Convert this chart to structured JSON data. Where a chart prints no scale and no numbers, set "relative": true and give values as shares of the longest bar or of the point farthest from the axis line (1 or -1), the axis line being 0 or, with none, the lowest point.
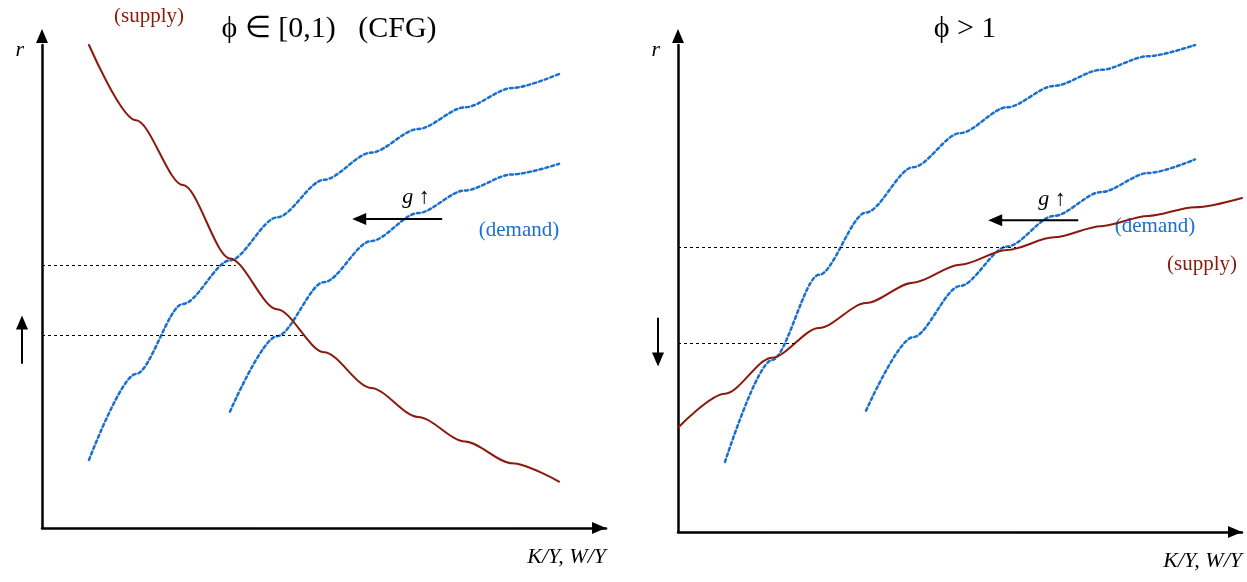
{
  "chart_data": [
    {
      "type": "line",
      "title": "ϕ ∈ [0,1)   (CFG)",
      "xlabel": "K/Y, W/Y",
      "ylabel": "r",
      "relative": true,
      "grid": false,
      "marker": "none",
      "categories": [
        null,
        null,
        null,
        null,
        null,
        null,
        null,
        null,
        null,
        null,
        null,
        null,
        null
      ],
      "series": [
        {
          "name": "(supply)",
          "color": "#8b1a0e",
          "line_style": "solid",
          "values": [
            null,
            1.0,
            0.844,
            0.71,
            0.558,
            0.453,
            0.364,
            0.29,
            0.23,
            0.179,
            0.134,
            0.096,
            null
          ]
        },
        {
          "color": "#1a6fcf",
          "line_style": "dotted",
          "values": [
            null,
            0.141,
            0.319,
            0.464,
            0.554,
            0.643,
            0.721,
            0.777,
            0.826,
            0.871,
            0.911,
            0.94,
            null
          ]
        },
        {
          "name": "(demand)",
          "color": "#1a6fcf",
          "line_style": "dotted",
          "values": [
            null,
            null,
            null,
            null,
            0.241,
            0.397,
            0.509,
            0.594,
            0.652,
            0.699,
            0.732,
            0.754,
            null
          ]
        }
      ],
      "ref_lines": [
        {
          "axis": "y",
          "value": 0.545,
          "line_style": "dotted",
          "color": "#000000"
        },
        {
          "axis": "y",
          "value": 0.4,
          "line_style": "dotted",
          "color": "#000000"
        }
      ],
      "annotations": [
        "g ↑"
      ]
    },
    {
      "type": "line",
      "title": "ϕ > 1",
      "xlabel": "K/Y, W/Y",
      "ylabel": "r",
      "relative": true,
      "grid": false,
      "marker": "none",
      "categories": [
        null,
        null,
        null,
        null,
        null,
        null,
        null,
        null,
        null,
        null,
        null,
        null,
        null
      ],
      "series": [
        {
          "name": "(supply)",
          "color": "#8b1a0e",
          "line_style": "solid",
          "values": [
            0.214,
            0.284,
            0.358,
            0.419,
            0.47,
            0.512,
            0.549,
            0.579,
            0.605,
            0.628,
            0.649,
            0.667,
            0.686
          ]
        },
        {
          "color": "#1a6fcf",
          "line_style": "dotted",
          "values": [
            null,
            0.144,
            0.353,
            0.528,
            0.656,
            0.749,
            0.819,
            0.872,
            0.916,
            0.949,
            0.977,
            1.0,
            null
          ]
        },
        {
          "name": "(demand)",
          "color": "#1a6fcf",
          "line_style": "dotted",
          "values": [
            null,
            null,
            null,
            null,
            0.249,
            0.4,
            0.505,
            0.586,
            0.649,
            0.698,
            0.737,
            0.765,
            null
          ]
        }
      ],
      "ref_lines": [
        {
          "axis": "y",
          "value": 0.584,
          "line_style": "dotted",
          "color": "#000000"
        },
        {
          "axis": "y",
          "value": 0.388,
          "line_style": "dotted",
          "color": "#000000"
        }
      ],
      "annotations": [
        "g ↑"
      ]
    }
  ]
}
